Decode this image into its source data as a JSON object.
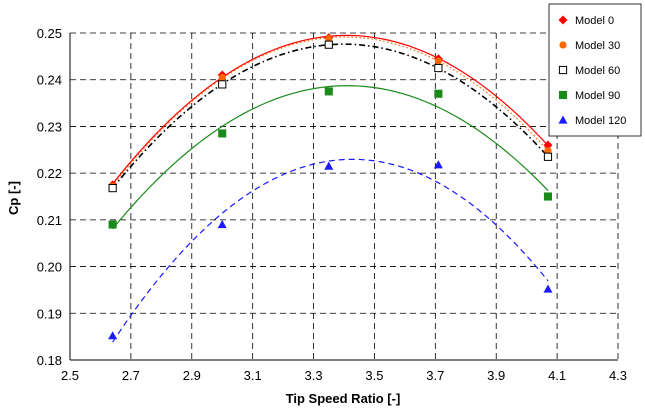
{
  "chart_data": {
    "type": "scatter",
    "title": "",
    "xlabel": "Tip Speed Ratio [-]",
    "ylabel": "Cp [-]",
    "xlim": [
      2.5,
      4.3
    ],
    "ylim": [
      0.18,
      0.25
    ],
    "xticks": [
      2.5,
      2.7,
      2.9,
      3.1,
      3.3,
      3.5,
      3.7,
      3.9,
      4.1,
      4.3
    ],
    "yticks": [
      0.18,
      0.19,
      0.2,
      0.21,
      0.22,
      0.23,
      0.24,
      0.25
    ],
    "xtick_labels": [
      "2.5",
      "2.7",
      "2.9",
      "3.1",
      "3.3",
      "3.5",
      "3.7",
      "3.9",
      "4.1",
      "4.3"
    ],
    "ytick_labels": [
      "0.18",
      "0.19",
      "0.20",
      "0.21",
      "0.22",
      "0.23",
      "0.24",
      "0.25"
    ],
    "grid": true,
    "grid_style": "dashed",
    "legend_position": "top-right",
    "trendlines": "quadratic",
    "series": [
      {
        "name": "Model 0",
        "marker": "diamond",
        "color": "#ff0000",
        "line_color": "#ff0000",
        "line_style": "solid",
        "x": [
          2.64,
          3.0,
          3.35,
          3.71,
          4.07
        ],
        "y": [
          0.2175,
          0.241,
          0.249,
          0.2445,
          0.226
        ]
      },
      {
        "name": "Model 30",
        "marker": "circle",
        "color": "#ff6600",
        "line_color": "#ff6600",
        "line_style": "dotted",
        "x": [
          2.64,
          3.0,
          3.35,
          3.71,
          4.07
        ],
        "y": [
          0.2172,
          0.2405,
          0.2488,
          0.244,
          0.2248
        ]
      },
      {
        "name": "Model 60",
        "marker": "square-open",
        "color": "#000000",
        "line_color": "#000000",
        "line_style": "dashdot",
        "x": [
          2.64,
          3.0,
          3.35,
          3.71,
          4.07
        ],
        "y": [
          0.2168,
          0.239,
          0.2475,
          0.2425,
          0.2235
        ]
      },
      {
        "name": "Model 90",
        "marker": "square",
        "color": "#1a8a1a",
        "line_color": "#1a8a1a",
        "line_style": "solid",
        "x": [
          2.64,
          3.0,
          3.35,
          3.71,
          4.07
        ],
        "y": [
          0.209,
          0.2285,
          0.2375,
          0.237,
          0.215
        ]
      },
      {
        "name": "Model 120",
        "marker": "triangle",
        "color": "#1a1aff",
        "line_color": "#1a1aff",
        "line_style": "dashed",
        "x": [
          2.64,
          3.0,
          3.35,
          3.71,
          4.07
        ],
        "y": [
          0.1852,
          0.209,
          0.2215,
          0.2218,
          0.1952
        ]
      }
    ]
  }
}
